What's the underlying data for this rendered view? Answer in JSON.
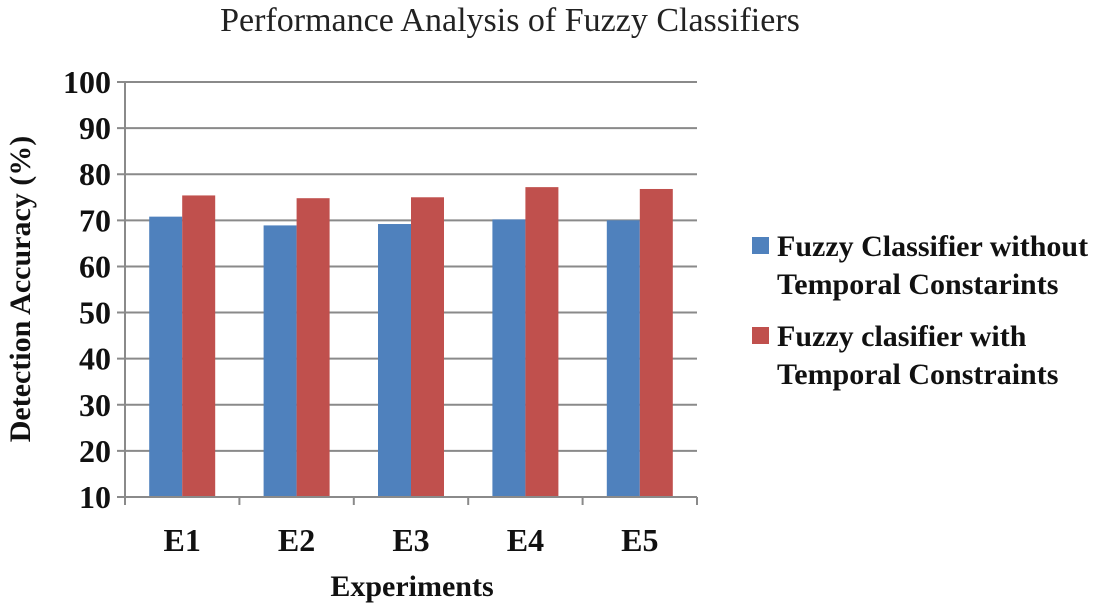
{
  "chart_data": {
    "type": "bar",
    "title": "Performance Analysis of Fuzzy Classifiers",
    "xlabel": "Experiments",
    "ylabel": "Detection Accuracy (%)",
    "categories": [
      "E1",
      "E2",
      "E3",
      "E4",
      "E5"
    ],
    "ylim": [
      10,
      100
    ],
    "yticks": [
      10,
      20,
      30,
      40,
      50,
      60,
      70,
      80,
      90,
      100
    ],
    "grid": true,
    "legend_position": "right",
    "series": [
      {
        "name": "Fuzzy Classifier without Temporal Constarints",
        "color": "#4f81bd",
        "values": [
          70.8,
          68.9,
          69.2,
          70.2,
          70.0
        ]
      },
      {
        "name": "Fuzzy clasifier with Temporal Constraints",
        "color": "#c0504d",
        "values": [
          75.4,
          74.8,
          75.0,
          77.2,
          76.8
        ]
      }
    ]
  }
}
